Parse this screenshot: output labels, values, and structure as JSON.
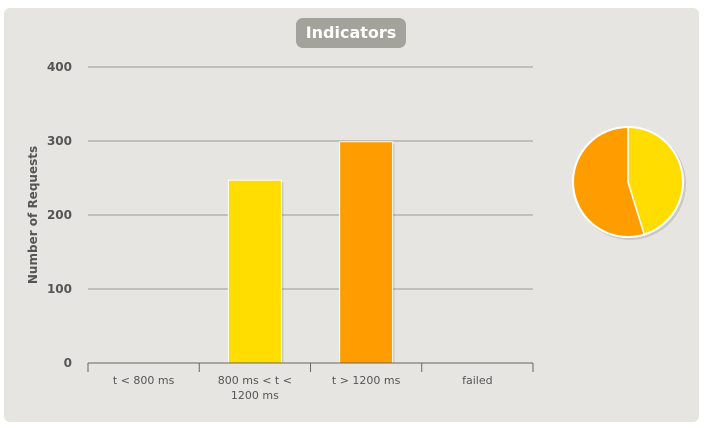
{
  "chart_data": {
    "type": "bar",
    "title": "Indicators",
    "ylabel": "Number of Requests",
    "xlabel": "",
    "ylim": [
      0,
      400
    ],
    "yticks": [
      0,
      100,
      200,
      300,
      400
    ],
    "categories": [
      [
        "t < 800 ms"
      ],
      [
        "800 ms < t <",
        "1200 ms"
      ],
      [
        "t > 1200 ms"
      ],
      [
        "failed"
      ]
    ],
    "values": [
      0,
      247,
      299,
      0
    ],
    "colors": [
      "#ffdd00",
      "#ffdd00",
      "#ff9d00",
      "#f15b4f"
    ],
    "grid": true,
    "pie": {
      "values": [
        247,
        299
      ],
      "colors": [
        "#ffdd00",
        "#ff9d00"
      ]
    }
  }
}
